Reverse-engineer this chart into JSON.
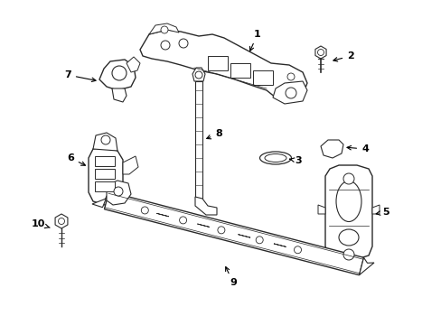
{
  "bg_color": "#ffffff",
  "line_color": "#2a2a2a",
  "text_color": "#000000",
  "figsize": [
    4.89,
    3.6
  ],
  "dpi": 100
}
